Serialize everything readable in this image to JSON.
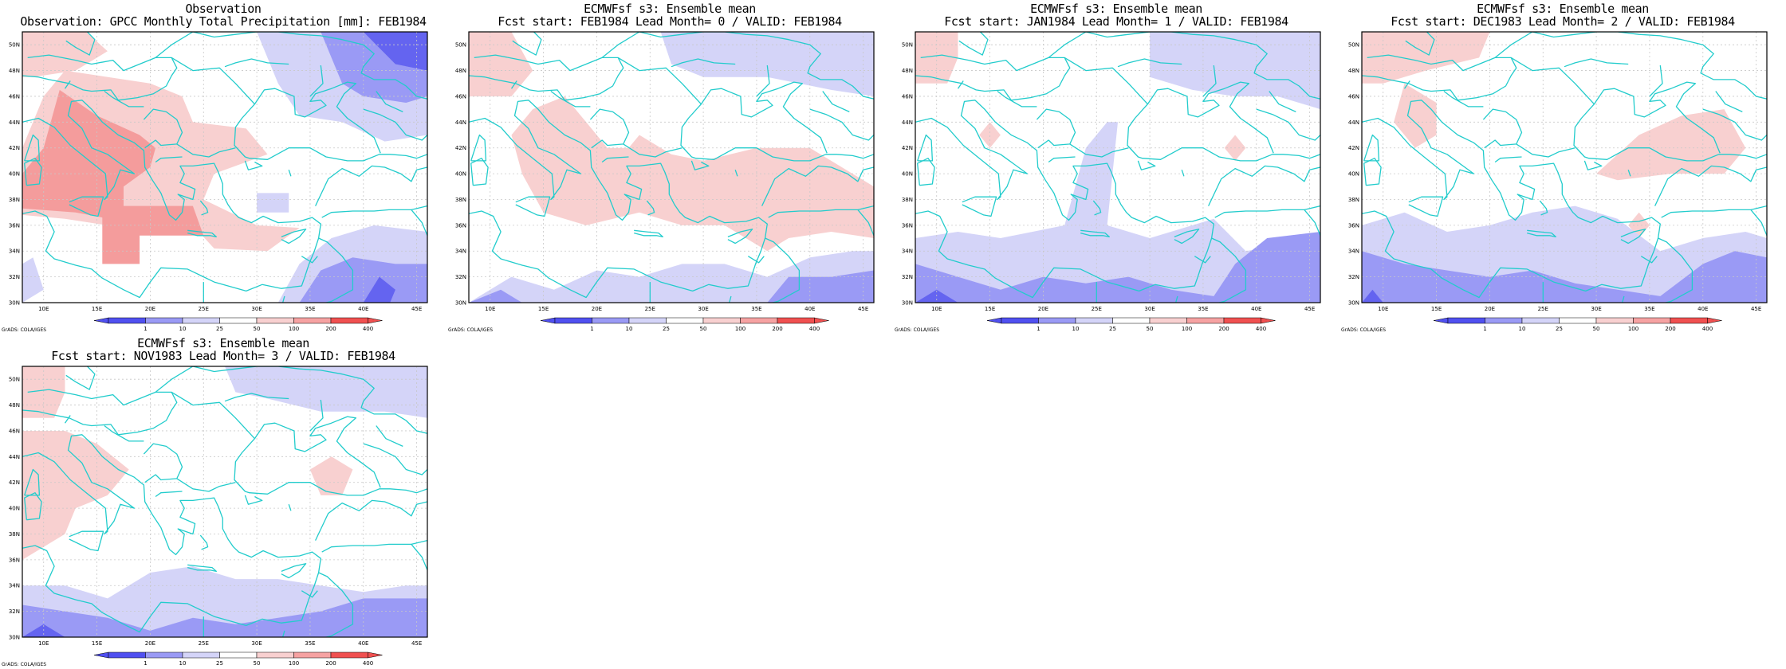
{
  "credit": "GrADS: COLA/IGES",
  "colorbar": {
    "labels": [
      "1",
      "10",
      "25",
      "50",
      "100",
      "200",
      "400"
    ],
    "colors": [
      "#5050f0",
      "#9a9af5",
      "#d4d4f8",
      "#ffffff",
      "#f8d0d0",
      "#f6a2a2",
      "#f05050"
    ]
  },
  "axes": {
    "lon_labels": [
      "10E",
      "15E",
      "20E",
      "25E",
      "30E",
      "35E",
      "40E",
      "45E"
    ],
    "lat_labels": [
      "30N",
      "32N",
      "34N",
      "36N",
      "38N",
      "40N",
      "42N",
      "44N",
      "46N",
      "48N",
      "50N"
    ]
  },
  "map_colors": {
    "coast": "#22cccc",
    "grid": "#c8c8c8",
    "frame": "#000000"
  },
  "panels": [
    {
      "title1": "Observation",
      "title2": "Observation: GPCC Monthly Total Precipitation [mm]: FEB1984"
    },
    {
      "title1": "ECMWFsf s3: Ensemble mean",
      "title2": "Fcst start: FEB1984  Lead Month= 0 / VALID: FEB1984"
    },
    {
      "title1": "ECMWFsf s3: Ensemble mean",
      "title2": "Fcst start: JAN1984  Lead Month= 1 / VALID: FEB1984"
    },
    {
      "title1": "ECMWFsf s3: Ensemble mean",
      "title2": "Fcst start: DEC1983  Lead Month= 2 / VALID: FEB1984"
    },
    {
      "title1": "ECMWFsf s3: Ensemble mean",
      "title2": "Fcst start: NOV1983  Lead Month= 3 / VALID: FEB1984"
    }
  ]
}
